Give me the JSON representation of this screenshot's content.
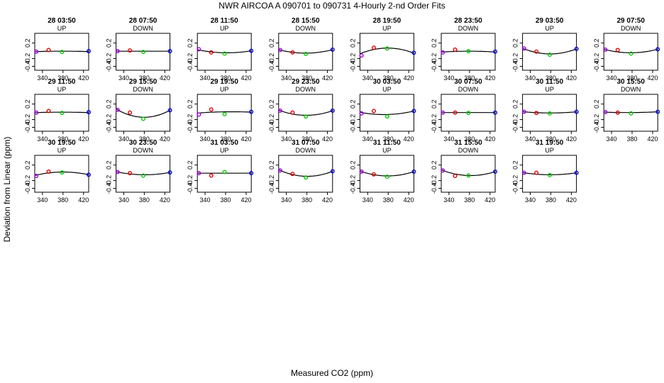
{
  "title": "NWR   AIRCOA A    090701 to 090731   4-Hourly 2-nd Order Fits",
  "xlabel": "Measured CO2 (ppm)",
  "ylabel": "Deviation from Linear (ppm)",
  "chart_data": {
    "type": "scatter",
    "layout": "faceted grid, 8 columns x 3 rows",
    "x_range": [
      325,
      430
    ],
    "y_range": [
      -0.5,
      0.45
    ],
    "x_ticks": [
      340,
      380,
      420
    ],
    "y_ticks": [
      0.2,
      -0.2,
      -0.4
    ],
    "y_tick_labels": [
      "0.2",
      "-0.2",
      "-0.4"
    ],
    "x_tick_labels": [
      "340",
      "380",
      "420"
    ],
    "x_points": [
      328,
      352,
      378,
      432
    ],
    "point_colors": [
      "#a000e0",
      "#e00000",
      "#00cc00",
      "#0000dd"
    ],
    "curve_color": "#000000",
    "panels": [
      {
        "title": "28 03:50",
        "direction": "UP",
        "y": [
          -0.02,
          0.02,
          -0.03,
          -0.01
        ],
        "fit": [
          -0.02,
          0.0,
          -0.01,
          -0.02
        ]
      },
      {
        "title": "28 07:50",
        "direction": "DOWN",
        "y": [
          -0.01,
          0.01,
          -0.03,
          -0.01
        ],
        "fit": [
          -0.01,
          -0.01,
          -0.01,
          -0.01
        ]
      },
      {
        "title": "28 11:50",
        "direction": "UP",
        "y": [
          0.04,
          -0.04,
          -0.07,
          0.0
        ],
        "fit": [
          0.02,
          -0.04,
          -0.05,
          0.0
        ]
      },
      {
        "title": "28 15:50",
        "direction": "DOWN",
        "y": [
          0.02,
          -0.04,
          -0.08,
          0.03
        ],
        "fit": [
          0.02,
          -0.04,
          -0.06,
          0.03
        ]
      },
      {
        "title": "28 19:50",
        "direction": "UP",
        "y": [
          -0.12,
          0.08,
          0.06,
          -0.05
        ],
        "fit": [
          -0.06,
          0.06,
          0.07,
          -0.06
        ]
      },
      {
        "title": "28 23:50",
        "direction": "DOWN",
        "y": [
          -0.04,
          0.03,
          -0.01,
          -0.02
        ],
        "fit": [
          -0.03,
          -0.01,
          -0.01,
          -0.03
        ]
      },
      {
        "title": "29 03:50",
        "direction": "UP",
        "y": [
          0.06,
          -0.02,
          -0.1,
          0.05
        ],
        "fit": [
          0.05,
          -0.05,
          -0.08,
          0.05
        ]
      },
      {
        "title": "29 07:50",
        "direction": "DOWN",
        "y": [
          0.03,
          0.02,
          -0.07,
          0.04
        ],
        "fit": [
          0.03,
          -0.03,
          -0.05,
          0.04
        ]
      },
      {
        "title": "29 11:50",
        "direction": "UP",
        "y": [
          -0.02,
          0.02,
          -0.03,
          -0.01
        ],
        "fit": [
          -0.02,
          -0.01,
          -0.01,
          -0.02
        ]
      },
      {
        "title": "29 15:50",
        "direction": "DOWN",
        "y": [
          0.05,
          -0.02,
          -0.18,
          0.04
        ],
        "fit": [
          0.05,
          -0.09,
          -0.14,
          0.04
        ]
      },
      {
        "title": "29 19:50",
        "direction": "UP",
        "y": [
          -0.07,
          0.06,
          -0.06,
          0.0
        ],
        "fit": [
          -0.03,
          0.0,
          0.0,
          -0.01
        ]
      },
      {
        "title": "29 23:50",
        "direction": "DOWN",
        "y": [
          0.03,
          -0.02,
          -0.12,
          0.03
        ],
        "fit": [
          0.03,
          -0.06,
          -0.09,
          0.03
        ]
      },
      {
        "title": "30 03:50",
        "direction": "UP",
        "y": [
          -0.04,
          0.02,
          -0.12,
          0.02
        ],
        "fit": [
          -0.02,
          -0.06,
          -0.07,
          0.02
        ]
      },
      {
        "title": "30 07:50",
        "direction": "DOWN",
        "y": [
          -0.02,
          -0.02,
          -0.03,
          -0.02
        ],
        "fit": [
          -0.02,
          -0.02,
          -0.02,
          -0.02
        ]
      },
      {
        "title": "30 11:50",
        "direction": "UP",
        "y": [
          0.0,
          -0.03,
          -0.04,
          0.0
        ],
        "fit": [
          0.0,
          -0.02,
          -0.03,
          0.0
        ]
      },
      {
        "title": "30 15:50",
        "direction": "DOWN",
        "y": [
          -0.01,
          -0.02,
          -0.04,
          0.0
        ],
        "fit": [
          -0.01,
          -0.02,
          -0.02,
          0.0
        ]
      },
      {
        "title": "30 19:50",
        "direction": "UP",
        "y": [
          -0.08,
          0.03,
          0.01,
          -0.05
        ],
        "fit": [
          -0.06,
          0.02,
          0.02,
          -0.05
        ]
      },
      {
        "title": "30 23:50",
        "direction": "DOWN",
        "y": [
          0.02,
          -0.01,
          -0.07,
          0.01
        ],
        "fit": [
          0.02,
          -0.03,
          -0.05,
          0.01
        ]
      },
      {
        "title": "31 03:50",
        "direction": "UP",
        "y": [
          -0.01,
          -0.07,
          0.02,
          -0.01
        ],
        "fit": [
          -0.01,
          -0.01,
          -0.01,
          -0.01
        ]
      },
      {
        "title": "31 07:50",
        "direction": "DOWN",
        "y": [
          0.06,
          -0.03,
          -0.12,
          0.04
        ],
        "fit": [
          0.06,
          -0.06,
          -0.09,
          0.04
        ]
      },
      {
        "title": "31 11:50",
        "direction": "UP",
        "y": [
          0.03,
          -0.04,
          -0.1,
          0.03
        ],
        "fit": [
          0.03,
          -0.06,
          -0.08,
          0.03
        ]
      },
      {
        "title": "31 15:50",
        "direction": "DOWN",
        "y": [
          0.06,
          -0.08,
          -0.07,
          0.03
        ],
        "fit": [
          0.06,
          -0.05,
          -0.07,
          0.03
        ]
      },
      {
        "title": "31 19:50",
        "direction": "UP",
        "y": [
          0.0,
          0.0,
          -0.06,
          0.0
        ],
        "fit": [
          0.0,
          -0.04,
          -0.05,
          0.0
        ]
      }
    ]
  }
}
